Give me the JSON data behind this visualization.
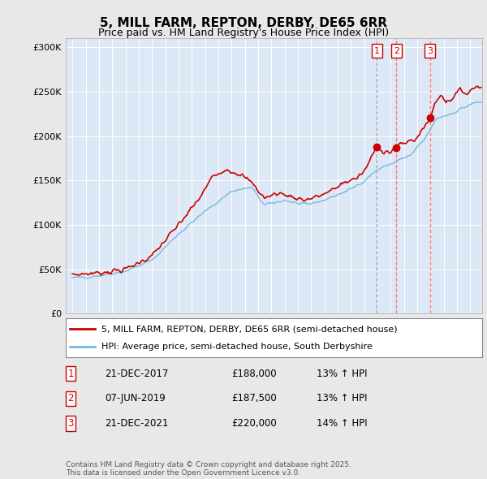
{
  "title1": "5, MILL FARM, REPTON, DERBY, DE65 6RR",
  "title2": "Price paid vs. HM Land Registry's House Price Index (HPI)",
  "background_color": "#e8e8e8",
  "plot_bg": "#dce8f5",
  "legend_label1": "5, MILL FARM, REPTON, DERBY, DE65 6RR (semi-detached house)",
  "legend_label2": "HPI: Average price, semi-detached house, South Derbyshire",
  "transactions": [
    {
      "num": 1,
      "date": "21-DEC-2017",
      "price": "£188,000",
      "hpi": "13% ↑ HPI",
      "year": 2017.97,
      "vline_color": "#8888aa",
      "vline_style": "--"
    },
    {
      "num": 2,
      "date": "07-JUN-2019",
      "price": "£187,500",
      "hpi": "13% ↑ HPI",
      "year": 2019.44,
      "vline_color": "#ff6666",
      "vline_style": "--"
    },
    {
      "num": 3,
      "date": "21-DEC-2021",
      "price": "£220,000",
      "hpi": "14% ↑ HPI",
      "year": 2021.97,
      "vline_color": "#ff6666",
      "vline_style": "--"
    }
  ],
  "footer": "Contains HM Land Registry data © Crown copyright and database right 2025.\nThis data is licensed under the Open Government Licence v3.0.",
  "hpi_color": "#7ab8e0",
  "price_color": "#cc0000",
  "marker_color": "#cc0000",
  "num_box_color": "#cc0000",
  "ylim": [
    0,
    310000
  ],
  "xlim_start": 1994.5,
  "xlim_end": 2025.9
}
